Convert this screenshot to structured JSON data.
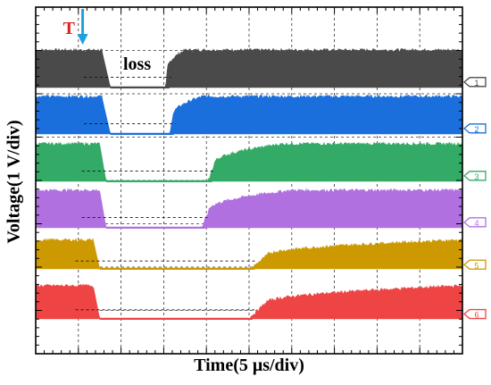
{
  "chart_data": {
    "type": "line",
    "xlabel": "Time(5 μs/div)",
    "ylabel": "Voltage(1 V/div)",
    "x_divisions": 10,
    "y_divisions": 8,
    "xlim": [
      0,
      10
    ],
    "grid": true,
    "trigger_label": "T",
    "trigger_position_div": 1.1,
    "annotation": "loss",
    "channel_label_side": "right",
    "series": [
      {
        "name": "1",
        "color": "#4a4a4a",
        "fall_start_div": 1.55,
        "fall_end_div": 1.75,
        "rise_start_div": 3.05,
        "rise_end_div": 3.5,
        "amplitude_div": 0.85
      },
      {
        "name": "2",
        "color": "#1a6fdc",
        "fall_start_div": 1.55,
        "fall_end_div": 1.75,
        "rise_start_div": 3.15,
        "rise_end_div": 3.9,
        "amplitude_div": 0.85
      },
      {
        "name": "3",
        "color": "#33aa66",
        "fall_start_div": 1.5,
        "fall_end_div": 1.65,
        "rise_start_div": 4.05,
        "rise_end_div": 5.8,
        "amplitude_div": 0.85
      },
      {
        "name": "4",
        "color": "#b070e0",
        "fall_start_div": 1.5,
        "fall_end_div": 1.65,
        "rise_start_div": 3.9,
        "rise_end_div": 6.0,
        "amplitude_div": 0.85
      },
      {
        "name": "5",
        "color": "#cc9900",
        "fall_start_div": 1.35,
        "fall_end_div": 1.5,
        "rise_start_div": 5.05,
        "rise_end_div": 9.9,
        "amplitude_div": 0.65
      },
      {
        "name": "6",
        "color": "#ee4444",
        "fall_start_div": 1.35,
        "fall_end_div": 1.5,
        "rise_start_div": 5.0,
        "rise_end_div": 10.0,
        "amplitude_div": 0.75
      }
    ]
  }
}
